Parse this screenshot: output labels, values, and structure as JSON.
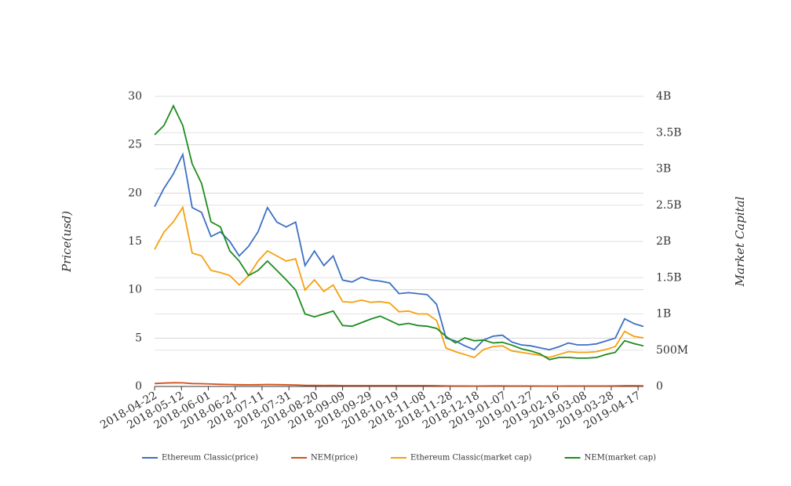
{
  "chart_data": {
    "type": "line",
    "x": [
      "2018-04-22",
      "2018-04-29",
      "2018-05-06",
      "2018-05-13",
      "2018-05-20",
      "2018-05-27",
      "2018-06-03",
      "2018-06-10",
      "2018-06-17",
      "2018-06-24",
      "2018-07-01",
      "2018-07-08",
      "2018-07-15",
      "2018-07-22",
      "2018-07-29",
      "2018-08-05",
      "2018-08-12",
      "2018-08-19",
      "2018-08-26",
      "2018-09-02",
      "2018-09-09",
      "2018-09-16",
      "2018-09-23",
      "2018-09-30",
      "2018-10-07",
      "2018-10-14",
      "2018-10-21",
      "2018-10-28",
      "2018-11-04",
      "2018-11-11",
      "2018-11-18",
      "2018-11-25",
      "2018-12-02",
      "2018-12-09",
      "2018-12-16",
      "2018-12-23",
      "2018-12-30",
      "2019-01-06",
      "2019-01-13",
      "2019-01-20",
      "2019-01-27",
      "2019-02-03",
      "2019-02-10",
      "2019-02-17",
      "2019-02-24",
      "2019-03-03",
      "2019-03-10",
      "2019-03-17",
      "2019-03-24",
      "2019-03-31",
      "2019-04-07",
      "2019-04-14",
      "2019-04-21"
    ],
    "xlim": [
      "2018-04-22",
      "2019-04-21"
    ],
    "xticks": [
      "2018-04-22",
      "2018-05-12",
      "2018-06-01",
      "2018-06-21",
      "2018-07-11",
      "2018-07-31",
      "2018-08-20",
      "2018-09-09",
      "2018-09-29",
      "2018-10-19",
      "2018-11-08",
      "2018-11-28",
      "2018-12-18",
      "2019-01-07",
      "2019-01-27",
      "2019-02-16",
      "2019-03-08",
      "2019-03-28",
      "2019-04-17"
    ],
    "y_label": "Price(usd)",
    "y2_label": "Market Capital",
    "ylim": [
      0,
      30
    ],
    "yticks": [
      0,
      5,
      10,
      15,
      20,
      25,
      30
    ],
    "y2lim": [
      0,
      4000000000
    ],
    "y2ticks": [
      0,
      {
        "value": 500000000,
        "label": "500M"
      },
      {
        "value": 1000000000,
        "label": "1B"
      },
      {
        "value": 1500000000,
        "label": "1.5B"
      },
      {
        "value": 2000000000,
        "label": "2B"
      },
      {
        "value": 2500000000,
        "label": "2.5B"
      },
      {
        "value": 3000000000,
        "label": "3B"
      },
      {
        "value": 3500000000,
        "label": "3.5B"
      },
      {
        "value": 4000000000,
        "label": "4B"
      }
    ],
    "grid": true,
    "legend": "bottom",
    "series": [
      {
        "name": "Ethereum Classic(price)",
        "color": "#3d6fc4",
        "values": [
          18.6,
          20.5,
          22,
          24,
          18.5,
          18,
          15.5,
          16,
          15,
          13.5,
          14.5,
          16,
          18.5,
          17,
          16.5,
          17,
          12.5,
          14,
          12.5,
          13.5,
          11,
          10.8,
          11.3,
          11,
          10.9,
          10.7,
          9.6,
          9.7,
          9.6,
          9.5,
          8.5,
          5,
          4.7,
          4.2,
          3.8,
          4.8,
          5.2,
          5.3,
          4.6,
          4.3,
          4.2,
          4.0,
          3.8,
          4.1,
          4.5,
          4.3,
          4.3,
          4.4,
          4.7,
          5.0,
          7.0,
          6.5,
          6.2
        ]
      },
      {
        "name": "NEM(price)",
        "color": "#d4501e",
        "values": [
          0.3,
          0.35,
          0.38,
          0.37,
          0.3,
          0.28,
          0.25,
          0.22,
          0.2,
          0.18,
          0.17,
          0.18,
          0.2,
          0.19,
          0.17,
          0.15,
          0.11,
          0.11,
          0.1,
          0.11,
          0.09,
          0.09,
          0.09,
          0.09,
          0.09,
          0.09,
          0.09,
          0.09,
          0.09,
          0.09,
          0.08,
          0.06,
          0.05,
          0.05,
          0.04,
          0.05,
          0.06,
          0.06,
          0.05,
          0.05,
          0.05,
          0.04,
          0.04,
          0.04,
          0.05,
          0.05,
          0.05,
          0.05,
          0.05,
          0.06,
          0.08,
          0.08,
          0.07
        ]
      },
      {
        "name": "Ethereum Classic(market cap)",
        "color": "#f5a00f",
        "axis": "y2",
        "values": [
          1890000000,
          2130000000,
          2270000000,
          2470000000,
          1840000000,
          1800000000,
          1600000000,
          1570000000,
          1530000000,
          1400000000,
          1530000000,
          1730000000,
          1870000000,
          1800000000,
          1730000000,
          1760000000,
          1330000000,
          1470000000,
          1310000000,
          1400000000,
          1170000000,
          1160000000,
          1190000000,
          1160000000,
          1170000000,
          1150000000,
          1030000000,
          1040000000,
          1000000000,
          1000000000,
          910000000,
          530000000,
          480000000,
          440000000,
          400000000,
          510000000,
          550000000,
          560000000,
          490000000,
          470000000,
          450000000,
          430000000,
          400000000,
          440000000,
          480000000,
          470000000,
          470000000,
          480000000,
          510000000,
          550000000,
          760000000,
          690000000,
          670000000
        ]
      },
      {
        "name": "NEM(market cap)",
        "color": "#1e8c1e",
        "axis": "y2",
        "values": [
          3470000000,
          3600000000,
          3870000000,
          3600000000,
          3070000000,
          2800000000,
          2270000000,
          2200000000,
          1870000000,
          1730000000,
          1530000000,
          1600000000,
          1730000000,
          1600000000,
          1470000000,
          1330000000,
          1000000000,
          960000000,
          1000000000,
          1040000000,
          840000000,
          830000000,
          880000000,
          930000000,
          970000000,
          910000000,
          850000000,
          870000000,
          840000000,
          830000000,
          800000000,
          690000000,
          600000000,
          670000000,
          630000000,
          640000000,
          600000000,
          610000000,
          570000000,
          520000000,
          490000000,
          450000000,
          370000000,
          400000000,
          400000000,
          390000000,
          390000000,
          400000000,
          440000000,
          470000000,
          630000000,
          590000000,
          560000000
        ]
      }
    ]
  }
}
